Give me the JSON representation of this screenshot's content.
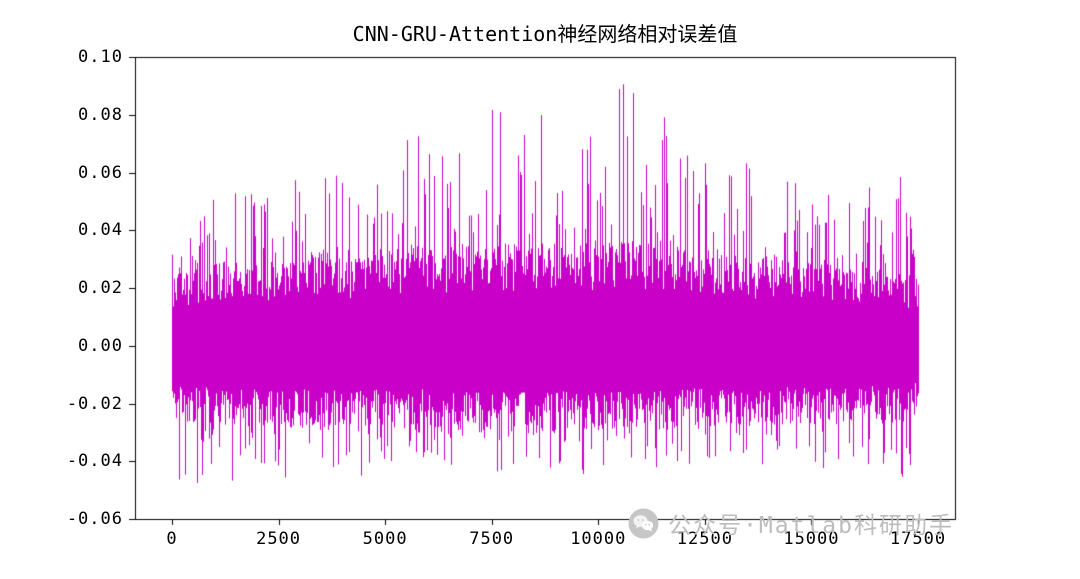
{
  "figure": {
    "background": "#ffffff"
  },
  "watermark": {
    "text": "公众号·Matlab科研助手",
    "color": "#bdbdbd",
    "icon": "wechat-icon"
  },
  "chart_data": {
    "type": "line",
    "title": "CNN-GRU-Attention神经网络相对误差值",
    "xlabel": "",
    "ylabel": "",
    "grid": false,
    "legend": null,
    "line_color": "#c800c8",
    "series_name": "relative-error",
    "n_points": 17500,
    "xlim": [
      0,
      17500
    ],
    "ylim": [
      -0.06,
      0.1
    ],
    "x_ticks": [
      0,
      2500,
      5000,
      7500,
      10000,
      12500,
      15000,
      17500
    ],
    "x_tick_labels": [
      "0",
      "2500",
      "5000",
      "7500",
      "10000",
      "12500",
      "15000",
      "17500"
    ],
    "y_ticks": [
      -0.06,
      -0.04,
      -0.02,
      0.0,
      0.02,
      0.04,
      0.06,
      0.08,
      0.1
    ],
    "y_tick_labels": [
      "-0.06",
      "-0.04",
      "-0.02",
      "0.00",
      "0.02",
      "0.04",
      "0.06",
      "0.08",
      "0.10"
    ],
    "max_value": 0.096,
    "max_x": 10500,
    "min_value": -0.053,
    "min_x": 17000,
    "representation": "dense noise signal summarized by envelopes sampled every 500 x-units",
    "envelope_x": [
      0,
      500,
      1000,
      1500,
      2000,
      2500,
      3000,
      3500,
      4000,
      4500,
      5000,
      5500,
      6000,
      6500,
      7000,
      7500,
      8000,
      8500,
      9000,
      9500,
      10000,
      10500,
      11000,
      11500,
      12000,
      12500,
      13000,
      13500,
      14000,
      14500,
      15000,
      15500,
      16000,
      16500,
      17000,
      17500
    ],
    "spike_upper": [
      0.032,
      0.042,
      0.052,
      0.061,
      0.05,
      0.053,
      0.06,
      0.071,
      0.058,
      0.048,
      0.063,
      0.082,
      0.072,
      0.066,
      0.069,
      0.088,
      0.082,
      0.085,
      0.073,
      0.07,
      0.076,
      0.096,
      0.083,
      0.081,
      0.07,
      0.066,
      0.061,
      0.064,
      0.056,
      0.06,
      0.051,
      0.056,
      0.052,
      0.056,
      0.066,
      0.032
    ],
    "spike_lower": [
      -0.046,
      -0.05,
      -0.044,
      -0.049,
      -0.043,
      -0.048,
      -0.041,
      -0.044,
      -0.042,
      -0.047,
      -0.04,
      -0.042,
      -0.039,
      -0.041,
      -0.046,
      -0.044,
      -0.043,
      -0.051,
      -0.041,
      -0.047,
      -0.043,
      -0.04,
      -0.045,
      -0.041,
      -0.043,
      -0.039,
      -0.041,
      -0.045,
      -0.042,
      -0.039,
      -0.041,
      -0.045,
      -0.043,
      -0.041,
      -0.053,
      -0.036
    ],
    "core_upper": [
      0.022,
      0.026,
      0.028,
      0.028,
      0.027,
      0.028,
      0.03,
      0.032,
      0.03,
      0.029,
      0.031,
      0.033,
      0.033,
      0.033,
      0.034,
      0.035,
      0.034,
      0.035,
      0.034,
      0.034,
      0.035,
      0.036,
      0.035,
      0.034,
      0.033,
      0.032,
      0.031,
      0.03,
      0.029,
      0.029,
      0.028,
      0.027,
      0.026,
      0.026,
      0.026,
      0.022
    ],
    "core_lower": [
      -0.024,
      -0.026,
      -0.026,
      -0.027,
      -0.026,
      -0.027,
      -0.027,
      -0.028,
      -0.027,
      -0.027,
      -0.027,
      -0.028,
      -0.027,
      -0.028,
      -0.028,
      -0.029,
      -0.028,
      -0.029,
      -0.028,
      -0.028,
      -0.028,
      -0.029,
      -0.028,
      -0.028,
      -0.027,
      -0.027,
      -0.027,
      -0.027,
      -0.026,
      -0.026,
      -0.026,
      -0.026,
      -0.025,
      -0.025,
      -0.026,
      -0.023
    ]
  }
}
